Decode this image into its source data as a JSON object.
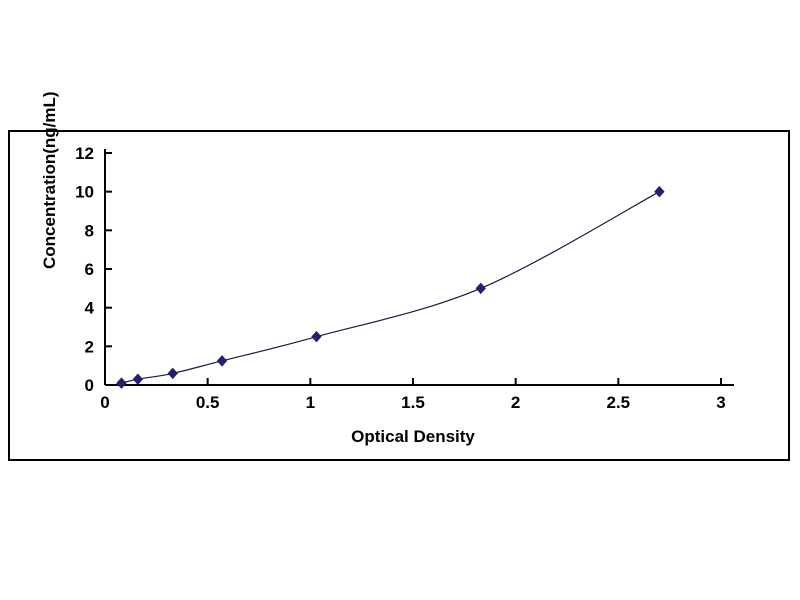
{
  "chart_data": {
    "type": "line",
    "title": "",
    "xlabel": "Optical Density",
    "ylabel": "Concentration(ng/mL)",
    "x": [
      0.08,
      0.16,
      0.33,
      0.57,
      1.03,
      1.83,
      2.7
    ],
    "y": [
      0.1,
      0.3,
      0.6,
      1.25,
      2.5,
      5.0,
      10.0
    ],
    "xlim": [
      0,
      3
    ],
    "ylim": [
      0,
      12
    ],
    "xticks": [
      0,
      0.5,
      1,
      1.5,
      2,
      2.5,
      3
    ],
    "yticks": [
      0,
      2,
      4,
      6,
      8,
      10,
      12
    ],
    "grid": "off",
    "legend": "none",
    "marker": "diamond",
    "marker_color": "#22226a",
    "line_color": "#1a1a42",
    "axis_color": "#000000",
    "frame_color": "#000000",
    "background_color": "#ffffff"
  }
}
